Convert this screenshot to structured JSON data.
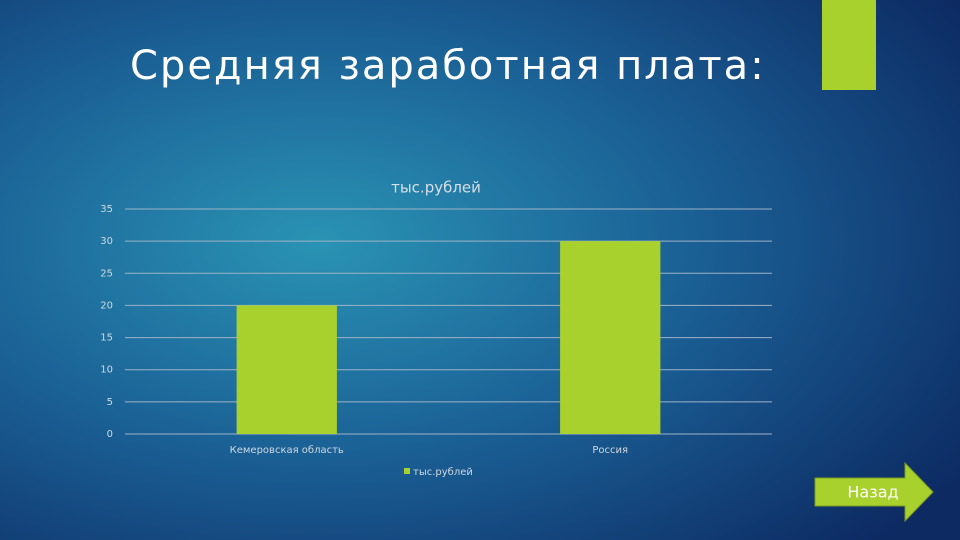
{
  "slide": {
    "title": "Средняя заработная плата:",
    "button": "Назад"
  },
  "chart_data": {
    "type": "bar",
    "title": "тыс.рублей",
    "categories": [
      "Кемеровская область",
      "Россия"
    ],
    "series": [
      {
        "name": "тыс.рублей",
        "color": "#a8d12e",
        "values": [
          20,
          30
        ]
      }
    ],
    "ylim": [
      0,
      35
    ],
    "yticks": [
      0,
      5,
      10,
      15,
      20,
      25,
      30,
      35
    ],
    "grid": true,
    "legend": "bottom"
  }
}
